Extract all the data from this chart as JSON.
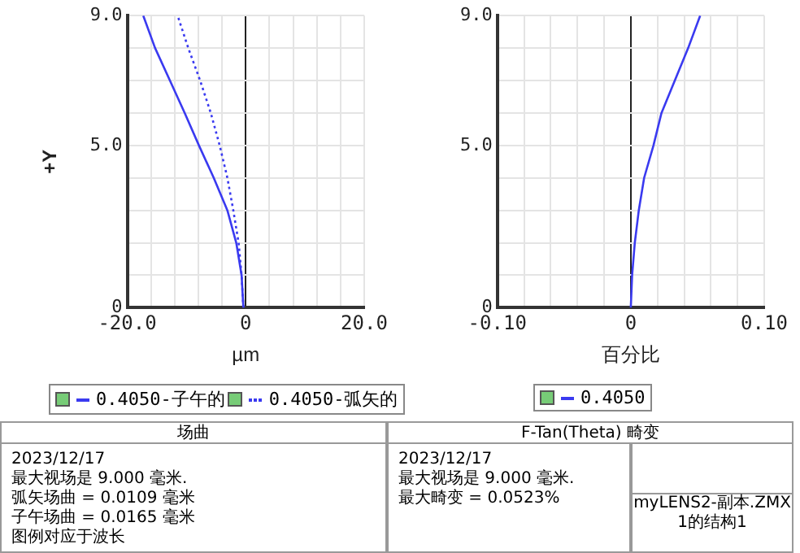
{
  "chart_data": [
    {
      "type": "line",
      "title": "场曲",
      "ylabel": "+Y",
      "xlabel": "µm",
      "xlim": [
        -20,
        20
      ],
      "ylim": [
        0,
        9
      ],
      "xticks": [
        {
          "value": -20,
          "label": "-20.0"
        },
        {
          "value": -16,
          "label": null
        },
        {
          "value": -12,
          "label": null
        },
        {
          "value": -8,
          "label": null
        },
        {
          "value": -4,
          "label": null
        },
        0,
        {
          "value": 4,
          "label": null
        },
        {
          "value": 8,
          "label": null
        },
        {
          "value": 12,
          "label": null
        },
        {
          "value": 16,
          "label": null
        },
        {
          "value": 20,
          "label": "20.0"
        }
      ],
      "yticks": [
        0,
        {
          "value": 1,
          "label": null
        },
        {
          "value": 2,
          "label": null
        },
        {
          "value": 3,
          "label": null
        },
        {
          "value": 4,
          "label": null
        },
        {
          "value": 5,
          "label": "5.0"
        },
        {
          "value": 6,
          "label": null
        },
        {
          "value": 7,
          "label": null
        },
        {
          "value": 8,
          "label": null
        },
        {
          "value": 9,
          "label": "9.0"
        }
      ],
      "grid": true,
      "legend": "bottom",
      "marker": "none",
      "series": [
        {
          "name": "0.4050-子午的",
          "color": "#3a3af0",
          "line_style": "solid",
          "x": [
            -0.4,
            -0.7,
            -1.6,
            -3.1,
            -5.4,
            -7.9,
            -10.3,
            -12.8,
            -15.3,
            -17.3
          ],
          "values": [
            0,
            1,
            2,
            3,
            4,
            5,
            6,
            7,
            8,
            9
          ]
        },
        {
          "name": "0.4050-弧矢的",
          "color": "#3a3af0",
          "line_style": "dotted",
          "x": [
            -0.4,
            -0.7,
            -1.2,
            -2.1,
            -3.1,
            -4.4,
            -5.9,
            -7.7,
            -9.7,
            -11.5
          ],
          "values": [
            0,
            1,
            2,
            3,
            4,
            5,
            6,
            7,
            8,
            9
          ]
        }
      ],
      "annotations": [
        "2023/12/17",
        "最大视场是 9.000 毫米.",
        "弧矢场曲 = 0.0109 毫米",
        "子午场曲 = 0.0165 毫米",
        "图例对应于波长"
      ]
    },
    {
      "type": "line",
      "title": "F-Tan(Theta) 畸变",
      "xlabel": "百分比",
      "xlim": [
        -0.1,
        0.1
      ],
      "ylim": [
        0,
        9
      ],
      "xticks": [
        {
          "value": -0.1,
          "label": "-0.10"
        },
        {
          "value": -0.08,
          "label": null
        },
        {
          "value": -0.06,
          "label": null
        },
        {
          "value": -0.04,
          "label": null
        },
        {
          "value": -0.02,
          "label": null
        },
        0,
        {
          "value": 0.02,
          "label": null
        },
        {
          "value": 0.04,
          "label": null
        },
        {
          "value": 0.06,
          "label": null
        },
        {
          "value": 0.08,
          "label": null
        },
        {
          "value": 0.1,
          "label": "0.10"
        }
      ],
      "yticks": [
        0,
        {
          "value": 1,
          "label": null
        },
        {
          "value": 2,
          "label": null
        },
        {
          "value": 3,
          "label": null
        },
        {
          "value": 4,
          "label": null
        },
        {
          "value": 5,
          "label": "5.0"
        },
        {
          "value": 6,
          "label": null
        },
        {
          "value": 7,
          "label": null
        },
        {
          "value": 8,
          "label": null
        },
        {
          "value": 9,
          "label": "9.0"
        }
      ],
      "grid": true,
      "legend": "bottom",
      "marker": "none",
      "series": [
        {
          "name": "0.4050",
          "color": "#3a3af0",
          "line_style": "solid",
          "x": [
            0,
            0.001,
            0.003,
            0.006,
            0.01,
            0.017,
            0.023,
            0.033,
            0.043,
            0.052
          ],
          "values": [
            0,
            1,
            2,
            3,
            4,
            5,
            6,
            7,
            8,
            9
          ]
        }
      ],
      "annotations": [
        "2023/12/17",
        "最大视场是 9.000 毫米.",
        "最大畸变 = 0.0523%"
      ]
    },
    {
      "type": "other",
      "annotations": [
        "myLENS2-副本.ZMX",
        "1的结构1"
      ]
    }
  ]
}
